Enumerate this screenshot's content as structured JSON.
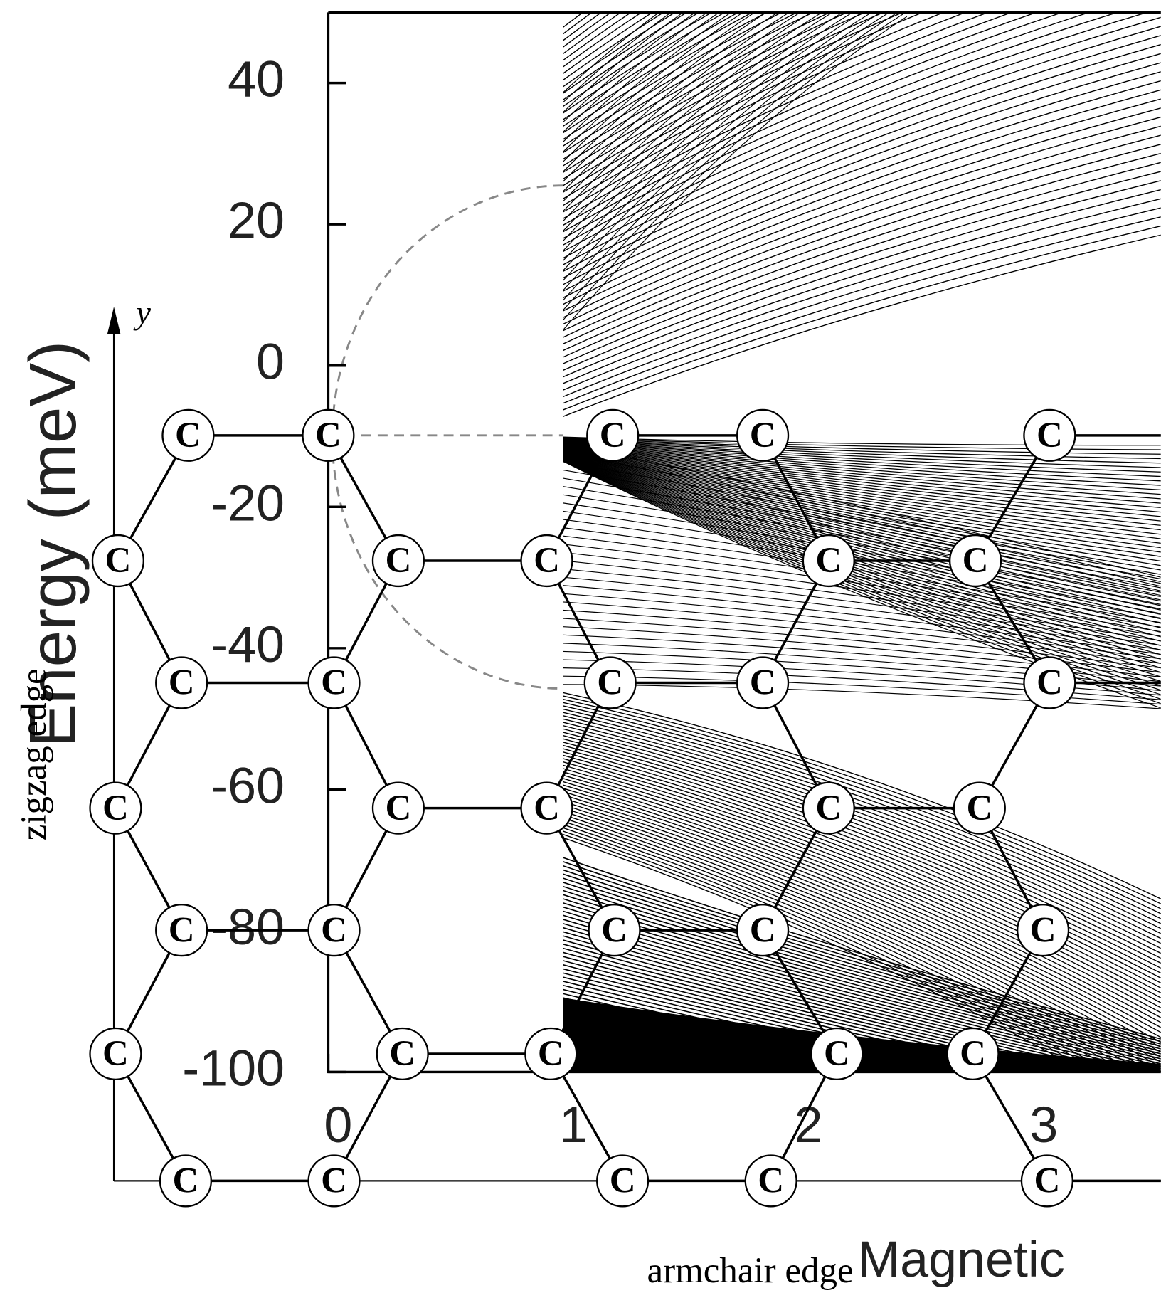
{
  "figure": {
    "y_axis": {
      "label": "Energy (meV)",
      "ticks": [
        40,
        20,
        0,
        -20,
        -40,
        -60,
        -80,
        -100
      ],
      "range": [
        -100,
        50
      ]
    },
    "x_axis": {
      "label": "Magnetic",
      "ticks": [
        0,
        1,
        2,
        3
      ],
      "range": [
        0,
        3.54
      ]
    },
    "lattice": {
      "axis_label": "y",
      "zigzag_label": "zigzag edge",
      "armchair_label": "armchair edge",
      "atoms": [
        "C",
        "C",
        "C",
        "C",
        "C",
        "C",
        "C",
        "C",
        "C",
        "C",
        "C",
        "C",
        "C",
        "C",
        "C",
        "C",
        "C",
        "C",
        "C",
        "C",
        "C",
        "C",
        "C",
        "C",
        "C",
        "C",
        "C",
        "C",
        "C",
        "C",
        "C",
        "C",
        "C",
        "C",
        "C"
      ]
    }
  }
}
